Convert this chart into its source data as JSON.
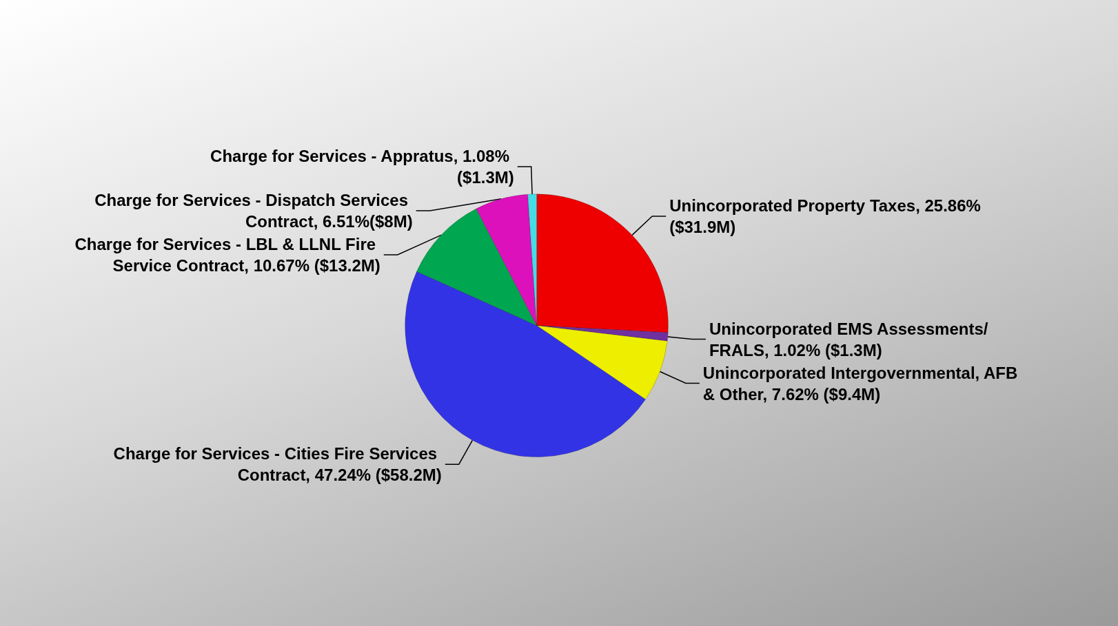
{
  "chart_data": {
    "type": "pie",
    "categories": [
      "Unincorporated Property Taxes",
      "Unincorporated EMS Assessments/FRALS",
      "Unincorporated Intergovernmental, AFB & Other",
      "Charge for Services - Cities Fire Services Contract",
      "Charge for Services - LBL & LLNL Fire Service Contract",
      "Charge for Services - Dispatch Services Contract",
      "Charge for Services - Appratus"
    ],
    "values": [
      25.86,
      1.02,
      7.62,
      47.24,
      10.67,
      6.51,
      1.08
    ],
    "value_labels": [
      "25.86% ($31.9M)",
      "1.02% ($1.3M)",
      "7.62% ($9.4M)",
      "47.24% ($58.2M)",
      "10.67% ($13.2M)",
      "6.51%($8M)",
      "1.08% ($1.3M)"
    ],
    "colors": [
      "#ee0000",
      "#7030a0",
      "#eeee00",
      "#3333e6",
      "#00a650",
      "#dd11bb",
      "#44dde6"
    ],
    "legend": false
  }
}
